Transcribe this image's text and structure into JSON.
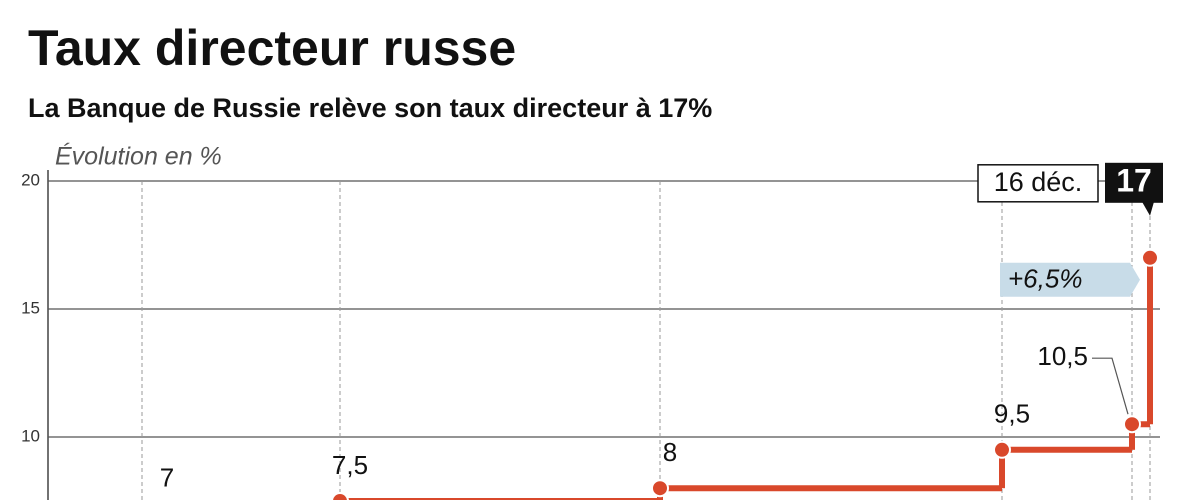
{
  "chart_data": {
    "type": "step",
    "title": "Taux directeur russe",
    "subtitle": "La Banque de Russie relève son taux directeur à 17%",
    "y_label": "Évolution en %",
    "categories": [
      null,
      null,
      null,
      null,
      null,
      "16 déc."
    ],
    "values": [
      7,
      7.5,
      8,
      9.5,
      10.5,
      17
    ],
    "value_labels": [
      "7",
      "7,5",
      "8",
      "9,5",
      "10,5",
      "17"
    ],
    "annotation": "+6,5%",
    "color": "#d9482b",
    "ylim": [
      7.5,
      20
    ],
    "yticks": [
      10,
      15,
      20
    ],
    "grid": true
  }
}
